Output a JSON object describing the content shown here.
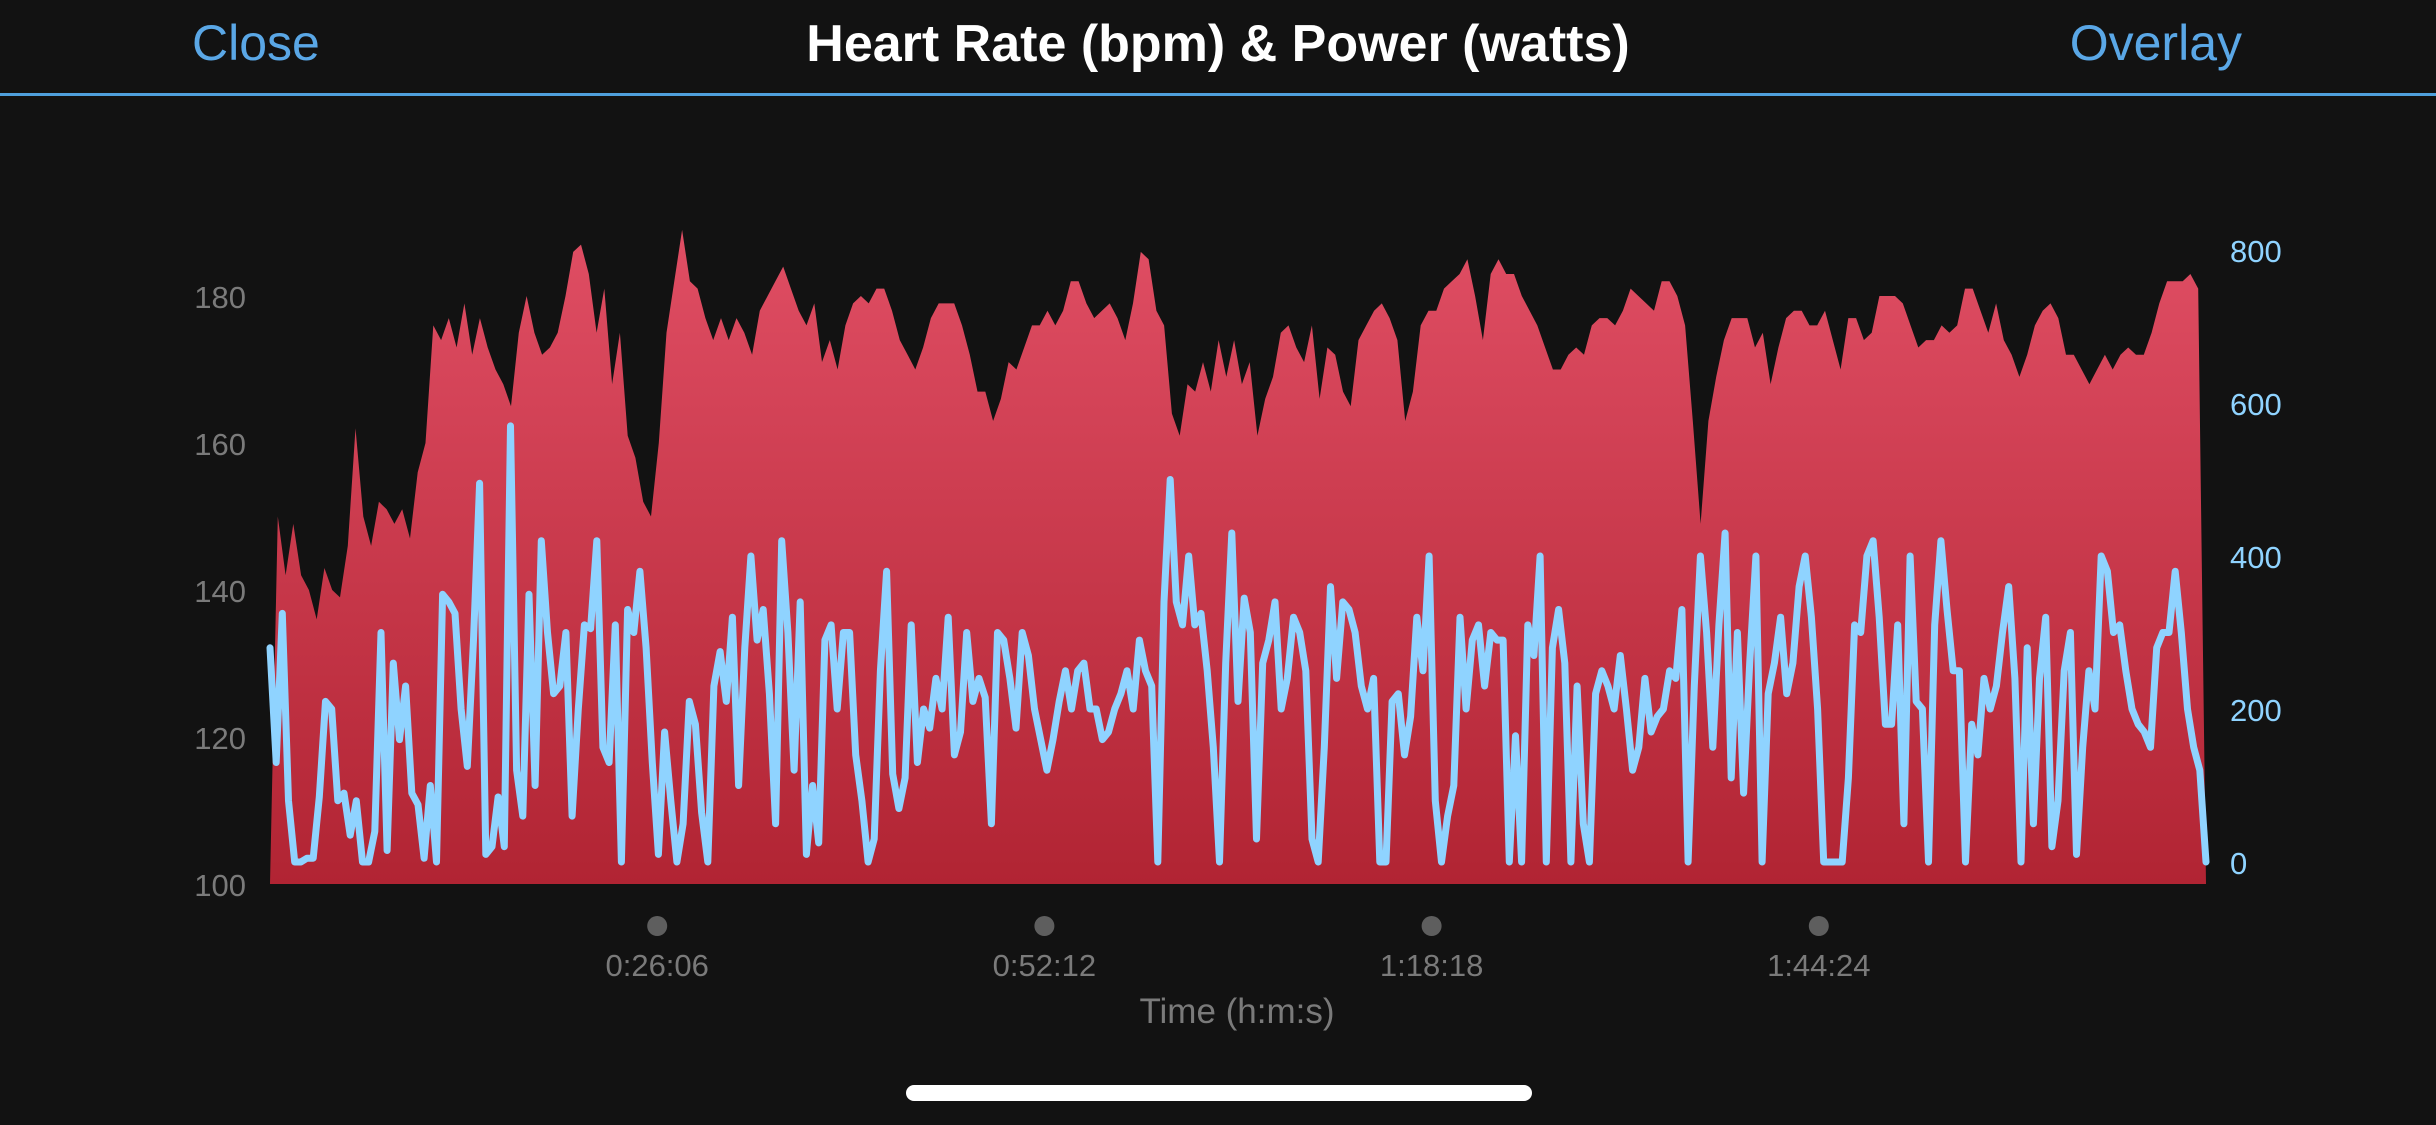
{
  "header": {
    "close_label": "Close",
    "title": "Heart Rate (bpm) & Power (watts)",
    "overlay_label": "Overlay"
  },
  "colors": {
    "background": "#121212",
    "accent": "#5aa7e6",
    "heart_rate_fill_top": "#e04e64",
    "heart_rate_fill_bottom": "#b12433",
    "power_line": "#8fd3ff",
    "left_axis_text": "#7a7a7a",
    "right_axis_text": "#8fd3ff"
  },
  "chart_data": {
    "type": "area",
    "xlabel": "Time (h:m:s)",
    "x_tick_labels": [
      "0:26:06",
      "0:52:12",
      "1:18:18",
      "1:44:24"
    ],
    "x_ticks_seconds": [
      1566,
      3132,
      4698,
      6264
    ],
    "xlim_seconds": [
      0,
      7830
    ],
    "y_left": {
      "label": "",
      "ylim": [
        100,
        188
      ],
      "ticks": [
        100,
        120,
        140,
        160,
        180
      ]
    },
    "y_right": {
      "label": "",
      "ylim": [
        0,
        800
      ],
      "ticks": [
        0,
        200,
        400,
        600,
        800
      ]
    },
    "grid": false,
    "series": [
      {
        "kind": "area",
        "axis": "left",
        "x_step_seconds": 48,
        "values": [
          100,
          150,
          142,
          149,
          142,
          140,
          136,
          143,
          140,
          139,
          146,
          162,
          150,
          146,
          152,
          151,
          149,
          151,
          147,
          156,
          160,
          176,
          174,
          177,
          173,
          179,
          172,
          177,
          173,
          170,
          168,
          165,
          175,
          180,
          175,
          172,
          173,
          175,
          180,
          186,
          187,
          183,
          175,
          181,
          168,
          175,
          161,
          158,
          152,
          150,
          160,
          175,
          182,
          189,
          182,
          181,
          177,
          174,
          177,
          174,
          177,
          175,
          172,
          178,
          180,
          182,
          184,
          181,
          178,
          176,
          179,
          171,
          174,
          170,
          176,
          179,
          180,
          179,
          181,
          181,
          178,
          174,
          172,
          170,
          173,
          177,
          179,
          179,
          179,
          176,
          172,
          167,
          167,
          163,
          166,
          171,
          170,
          173,
          176,
          176,
          178,
          176,
          178,
          182,
          182,
          179,
          177,
          178,
          179,
          177,
          174,
          179,
          186,
          185,
          178,
          176,
          164,
          161,
          168,
          167,
          171,
          167,
          174,
          169,
          174,
          168,
          171,
          161,
          166,
          169,
          175,
          176,
          173,
          171,
          176,
          166,
          173,
          172,
          167,
          165,
          174,
          176,
          178,
          179,
          177,
          174,
          163,
          167,
          176,
          178,
          178,
          181,
          182,
          183,
          185,
          180,
          174,
          183,
          185,
          183,
          183,
          180,
          178,
          176,
          173,
          170,
          170,
          172,
          173,
          172,
          176,
          177,
          177,
          176,
          178,
          181,
          180,
          179,
          178,
          182,
          182,
          180,
          176,
          163,
          149,
          163,
          169,
          174,
          177,
          177,
          177,
          173,
          175,
          168,
          173,
          177,
          178,
          178,
          176,
          176,
          178,
          174,
          170,
          177,
          177,
          174,
          175,
          180,
          180,
          180,
          179,
          176,
          173,
          174,
          174,
          176,
          175,
          176,
          181,
          181,
          178,
          175,
          179,
          174,
          172,
          169,
          172,
          176,
          178,
          179,
          177,
          172,
          172,
          170,
          168,
          170,
          172,
          170,
          172,
          173,
          172,
          172,
          175,
          179,
          182,
          182,
          182,
          183,
          181,
          100
        ]
      },
      {
        "kind": "line",
        "axis": "right",
        "x_step_seconds": 24,
        "values": [
          280,
          130,
          325,
          80,
          0,
          0,
          5,
          5,
          85,
          210,
          200,
          80,
          90,
          35,
          80,
          0,
          0,
          40,
          300,
          15,
          260,
          160,
          230,
          90,
          75,
          5,
          100,
          0,
          350,
          340,
          325,
          200,
          125,
          290,
          495,
          10,
          20,
          85,
          20,
          570,
          120,
          60,
          350,
          100,
          420,
          300,
          220,
          230,
          300,
          60,
          200,
          310,
          305,
          420,
          150,
          130,
          310,
          0,
          330,
          300,
          380,
          280,
          130,
          10,
          170,
          80,
          0,
          50,
          210,
          180,
          65,
          0,
          230,
          275,
          210,
          320,
          100,
          280,
          400,
          290,
          330,
          220,
          50,
          420,
          300,
          120,
          340,
          10,
          100,
          25,
          290,
          310,
          200,
          300,
          300,
          140,
          80,
          0,
          30,
          250,
          380,
          115,
          70,
          110,
          310,
          130,
          200,
          175,
          240,
          200,
          320,
          140,
          170,
          300,
          210,
          240,
          215,
          50,
          300,
          290,
          240,
          175,
          300,
          270,
          200,
          160,
          120,
          160,
          210,
          250,
          200,
          250,
          260,
          200,
          200,
          160,
          170,
          200,
          220,
          250,
          200,
          290,
          250,
          230,
          0,
          340,
          500,
          340,
          310,
          400,
          310,
          325,
          250,
          150,
          0,
          260,
          430,
          210,
          345,
          300,
          30,
          260,
          290,
          340,
          200,
          240,
          320,
          300,
          250,
          30,
          0,
          150,
          360,
          240,
          340,
          330,
          300,
          230,
          200,
          240,
          0,
          0,
          210,
          220,
          140,
          190,
          320,
          250,
          400,
          80,
          0,
          60,
          100,
          320,
          200,
          290,
          310,
          230,
          300,
          290,
          290,
          0,
          165,
          0,
          310,
          270,
          400,
          0,
          280,
          330,
          260,
          0,
          230,
          50,
          0,
          220,
          250,
          230,
          200,
          270,
          200,
          120,
          150,
          240,
          170,
          190,
          200,
          250,
          240,
          330,
          0,
          230,
          400,
          300,
          150,
          310,
          430,
          110,
          300,
          90,
          260,
          400,
          0,
          220,
          260,
          320,
          220,
          260,
          360,
          400,
          320,
          200,
          0,
          0,
          0,
          0,
          110,
          310,
          300,
          400,
          420,
          320,
          180,
          180,
          310,
          50,
          400,
          210,
          200,
          0,
          310,
          420,
          330,
          250,
          250,
          0,
          180,
          140,
          240,
          200,
          230,
          300,
          360,
          240,
          0,
          280,
          50,
          240,
          320,
          20,
          80,
          250,
          300,
          10,
          150,
          250,
          200,
          400,
          380,
          300,
          310,
          250,
          200,
          180,
          170,
          150,
          280,
          300,
          300,
          380,
          300,
          200,
          150,
          120,
          0
        ]
      }
    ]
  }
}
